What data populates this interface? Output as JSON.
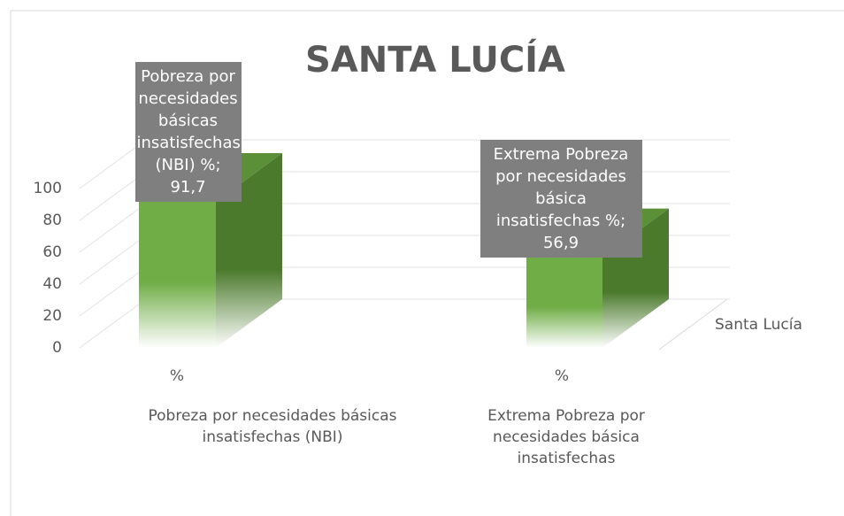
{
  "chart_data": {
    "type": "bar3d",
    "title": "SANTA LUCÍA",
    "categories": [
      "%",
      "%"
    ],
    "groups": [
      "Pobreza por necesidades básicas insatisfechas (NBI)",
      "Extrema Pobreza por necesidades básica insatisfechas"
    ],
    "series": [
      {
        "name": "Santa Lucía",
        "color": "#70ad47",
        "values": [
          91.7,
          56.9
        ],
        "value_labels": [
          "Pobreza por necesidades básicas insatisfechas (NBI) %; 91,7",
          "Extrema Pobreza por necesidades básica insatisfechas %; 56,9"
        ]
      }
    ],
    "ylim": [
      0,
      100
    ],
    "yticks": [
      0,
      20,
      40,
      60,
      80,
      100
    ],
    "grid": true
  }
}
